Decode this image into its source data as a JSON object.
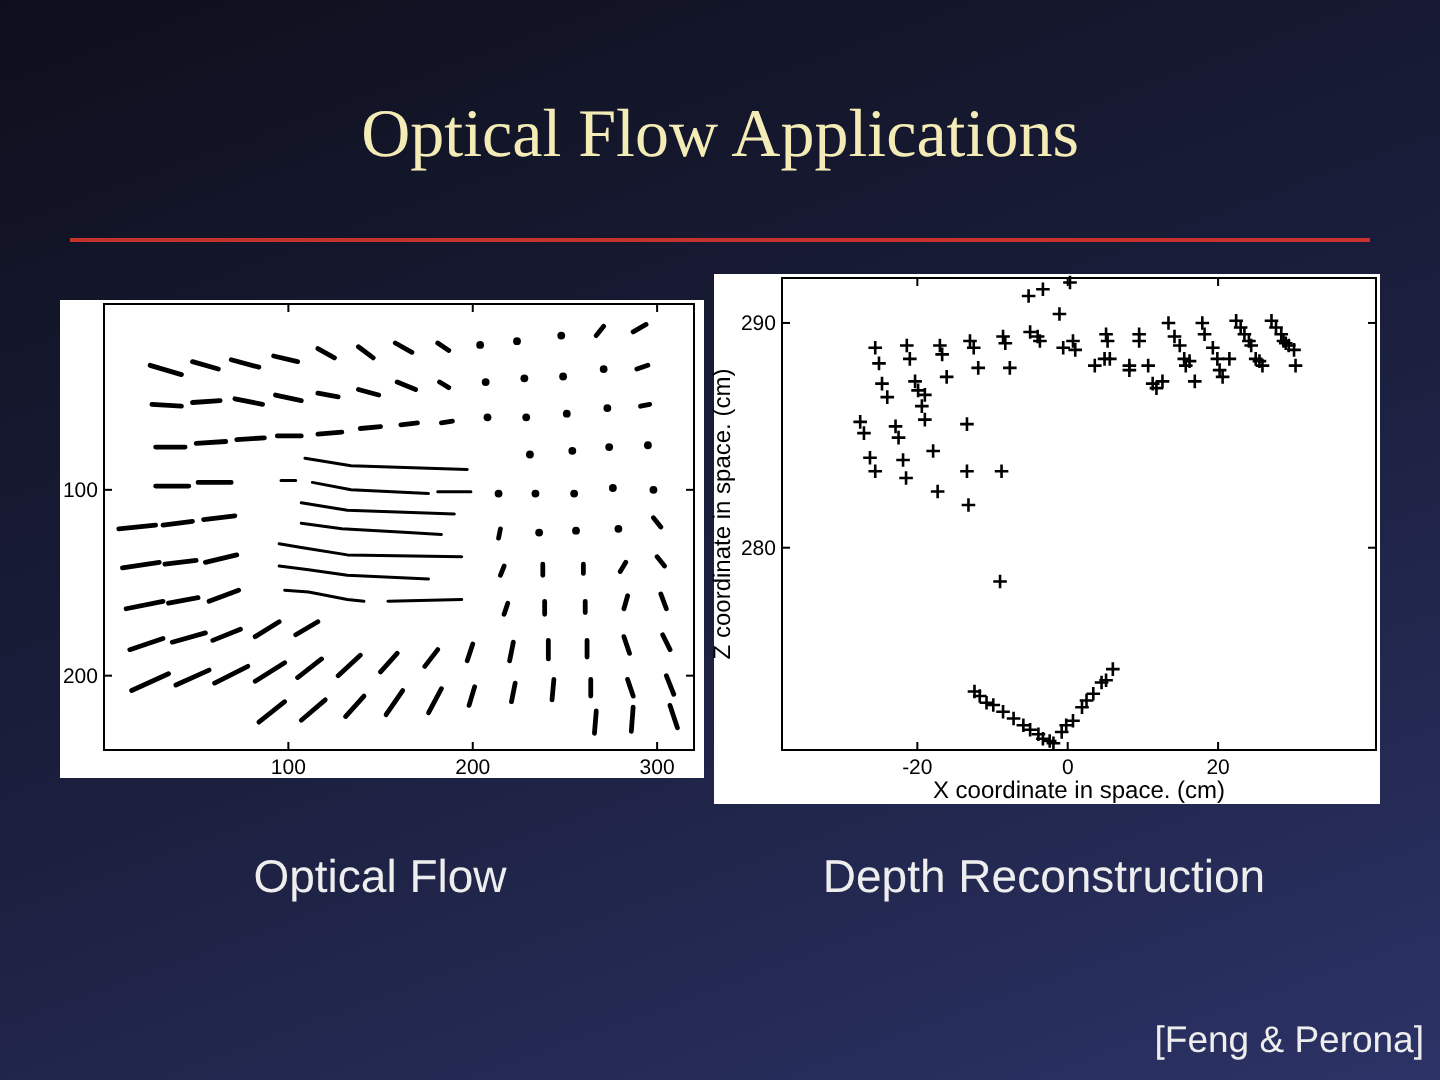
{
  "chart_data": [
    {
      "type": "line",
      "title": "Optical Flow Applications",
      "annotations": [
        "Optical Flow"
      ],
      "color": "#000000",
      "xlim": [
        0,
        320
      ],
      "ylim": [
        240,
        0
      ],
      "xticks": [
        100,
        200,
        300
      ],
      "yticks": [
        100,
        200
      ],
      "series": [
        {
          "x": [
            25,
            42,
            null,
            48,
            62,
            null,
            69,
            84,
            null,
            92,
            105,
            null,
            116,
            125,
            null,
            138,
            146,
            null,
            158,
            167,
            null,
            181,
            187,
            null,
            267,
            271,
            null,
            287,
            294
          ],
          "values": [
            33,
            38,
            null,
            31,
            35,
            null,
            30,
            34,
            null,
            28,
            31,
            null,
            24,
            29,
            null,
            23,
            29,
            null,
            21,
            26,
            null,
            21,
            25,
            null,
            17,
            12,
            null,
            15,
            11
          ]
        },
        {
          "x": [
            26,
            42,
            null,
            48,
            63,
            null,
            71,
            86,
            null,
            93,
            107,
            null,
            116,
            127,
            null,
            138,
            149,
            null,
            159,
            169,
            null,
            182,
            187,
            null,
            289,
            295
          ],
          "values": [
            54,
            55,
            null,
            53,
            52,
            null,
            51,
            54,
            null,
            49,
            52,
            null,
            48,
            50,
            null,
            46,
            49,
            null,
            42,
            46,
            null,
            42,
            45,
            null,
            35,
            33
          ]
        },
        {
          "x": [
            28,
            44,
            null,
            50,
            66,
            null,
            72,
            87,
            null,
            94,
            107,
            null,
            116,
            129,
            null,
            139,
            150,
            null,
            161,
            170,
            null,
            183,
            189,
            null,
            291,
            296
          ],
          "values": [
            77,
            77,
            null,
            75,
            74,
            null,
            73,
            72,
            null,
            71,
            71,
            null,
            70,
            69,
            null,
            67,
            66,
            null,
            65,
            64,
            null,
            64,
            63,
            null,
            55,
            54
          ]
        },
        {
          "x": [
            28,
            46,
            null,
            51,
            69
          ],
          "values": [
            98,
            98,
            null,
            96,
            96
          ]
        },
        {
          "x": [
            8,
            28,
            null,
            32,
            48,
            null,
            54,
            71
          ],
          "values": [
            121,
            119,
            null,
            119,
            117,
            null,
            116,
            114
          ]
        },
        {
          "x": [
            214,
            215,
            null,
            298,
            302
          ],
          "values": [
            126,
            121,
            null,
            115,
            120
          ]
        },
        {
          "x": [
            10,
            30,
            null,
            33,
            50,
            null,
            55,
            72
          ],
          "values": [
            142,
            139,
            null,
            140,
            138,
            null,
            139,
            135
          ]
        },
        {
          "x": [
            215,
            217,
            null,
            238,
            238,
            null,
            260,
            260,
            null,
            280,
            283,
            null,
            300,
            304
          ],
          "values": [
            146,
            141,
            null,
            146,
            140,
            null,
            145,
            140,
            null,
            144,
            139,
            null,
            136,
            141
          ]
        },
        {
          "x": [
            12,
            32,
            null,
            35,
            51,
            null,
            57,
            73
          ],
          "values": [
            164,
            160,
            null,
            161,
            158,
            null,
            160,
            154
          ]
        },
        {
          "x": [
            217,
            219,
            null,
            239,
            239,
            null,
            261,
            261,
            null,
            282,
            284,
            null,
            302,
            305
          ],
          "values": [
            167,
            161,
            null,
            167,
            160,
            null,
            166,
            160,
            null,
            164,
            157,
            null,
            156,
            164
          ]
        },
        {
          "x": [
            14,
            32,
            null,
            37,
            55,
            null,
            59,
            74,
            null,
            82,
            95,
            null,
            104,
            116
          ],
          "values": [
            186,
            180,
            null,
            182,
            177,
            null,
            181,
            175,
            null,
            179,
            171,
            null,
            178,
            171
          ]
        },
        {
          "x": [
            197,
            200,
            null,
            220,
            222,
            null,
            241,
            241,
            null,
            262,
            262,
            null,
            282,
            285,
            null,
            303,
            307
          ],
          "values": [
            192,
            183,
            null,
            192,
            182,
            null,
            191,
            181,
            null,
            190,
            181,
            null,
            179,
            188,
            null,
            178,
            186
          ]
        },
        {
          "x": [
            15,
            35,
            null,
            39,
            57,
            null,
            60,
            78,
            null,
            82,
            98,
            null,
            105,
            118,
            null,
            127,
            139,
            null,
            150,
            159,
            null,
            174,
            181
          ],
          "values": [
            208,
            199,
            null,
            205,
            197,
            null,
            204,
            195,
            null,
            203,
            193,
            null,
            201,
            191,
            null,
            200,
            189,
            null,
            198,
            188,
            null,
            195,
            186
          ]
        },
        {
          "x": [
            198,
            201,
            null,
            221,
            223,
            null,
            243,
            244,
            null,
            264,
            264,
            null,
            284,
            287,
            null,
            305,
            309
          ],
          "values": [
            216,
            206,
            null,
            214,
            204,
            null,
            213,
            202,
            null,
            211,
            202,
            null,
            202,
            211,
            null,
            200,
            210
          ]
        },
        {
          "x": [
            84,
            98,
            null,
            107,
            120,
            null,
            131,
            141,
            null,
            153,
            162,
            null,
            176,
            183
          ],
          "values": [
            225,
            214,
            null,
            224,
            213,
            null,
            222,
            211,
            null,
            221,
            208,
            null,
            220,
            207
          ]
        },
        {
          "x": [
            266,
            267,
            null,
            286,
            287,
            null,
            307,
            311
          ],
          "values": [
            231,
            219,
            null,
            230,
            217,
            null,
            216,
            228
          ]
        },
        {
          "type": "scatter",
          "marker": "circle",
          "x": [
            204,
            224,
            248,
            207,
            228,
            249,
            271,
            208,
            229,
            251,
            273,
            231,
            254,
            274,
            295,
            214,
            234,
            255,
            276,
            298,
            236,
            256,
            279
          ],
          "values": [
            22,
            20,
            17,
            42,
            40,
            39,
            35,
            61,
            61,
            59,
            56,
            81,
            79,
            77,
            76,
            102,
            102,
            102,
            99,
            100,
            123,
            122,
            121
          ]
        },
        {
          "x": [
            109,
            134,
            197
          ],
          "values": [
            83,
            87,
            89
          ]
        },
        {
          "x": [
            96,
            104,
            null,
            113,
            134,
            176,
            null,
            181,
            199
          ],
          "values": [
            95,
            95,
            null,
            96,
            100,
            102,
            null,
            101,
            101
          ]
        },
        {
          "x": [
            107,
            132,
            190
          ],
          "values": [
            107,
            111,
            113
          ]
        },
        {
          "x": [
            107,
            129,
            165,
            183
          ],
          "values": [
            118,
            121,
            123,
            124
          ]
        },
        {
          "x": [
            95,
            107,
            132,
            194
          ],
          "values": [
            129,
            131,
            135,
            136
          ]
        },
        {
          "x": [
            95,
            111,
            132,
            176
          ],
          "values": [
            141,
            143,
            146,
            148
          ]
        },
        {
          "x": [
            98,
            111,
            132,
            141,
            null,
            154,
            194
          ],
          "values": [
            154,
            155,
            159,
            160,
            null,
            160,
            159
          ]
        }
      ]
    },
    {
      "type": "scatter",
      "xlabel": "X coordinate in space. (cm)",
      "ylabel": "Z coordinate in space. (cm)",
      "annotations": [
        "Depth Reconstruction",
        "[Feng & Perona]"
      ],
      "color": "#000000",
      "marker": "cross",
      "xlim": [
        -38,
        41
      ],
      "ylim": [
        271,
        292
      ],
      "xticks": [
        -20,
        0,
        20
      ],
      "yticks": [
        280,
        290
      ],
      "series": [
        {
          "x": [
            -5.2,
            -3.3,
            0.3,
            -1.1,
            -5.0,
            -4.0,
            -3.7,
            -0.6,
            0.7,
            1.0,
            -25.6,
            -21.4,
            -21.0,
            -17.0,
            -16.7,
            -13.0,
            -12.5,
            -8.6,
            -8.3,
            -11.9,
            -16.1,
            -7.7,
            -25.1,
            -24.7,
            -24.0,
            -20.3,
            -19.9,
            -19.0,
            -19.4,
            -19.0,
            -27.6,
            -27.1,
            -26.3,
            -25.6,
            -22.9,
            -22.5,
            -21.9,
            -21.5,
            -17.9,
            -17.3,
            -13.4,
            -13.4,
            -13.2,
            -8.8,
            3.6,
            4.9,
            5.6,
            5.3,
            5.1,
            8.2,
            8.2,
            10.7,
            11.3,
            11.8,
            12.6,
            9.5,
            9.5,
            13.4,
            14.2,
            14.9,
            15.5,
            15.7,
            16.2,
            16.9,
            17.9,
            18.2,
            19.3,
            19.9,
            20.2,
            20.6,
            21.5,
            22.4,
            23.0,
            23.5,
            24.1,
            24.4,
            25.0,
            25.5,
            25.9,
            27.1,
            27.7,
            28.4,
            28.7,
            29.0,
            29.4,
            30.1,
            30.3,
            -9.0,
            -12.4,
            -11.7,
            -10.8,
            -9.9,
            -8.6,
            -7.2,
            -5.9,
            -5.0,
            -3.9,
            -3.3,
            -2.4,
            -1.9,
            -0.8,
            -0.2,
            0.7,
            1.9,
            2.5,
            3.4,
            4.5,
            5.1,
            6.0
          ],
          "values": [
            291.2,
            291.5,
            291.8,
            290.4,
            289.6,
            289.4,
            289.2,
            288.9,
            289.2,
            288.8,
            288.9,
            289.0,
            288.4,
            289.0,
            288.6,
            289.2,
            288.9,
            289.4,
            289.1,
            288.0,
            287.6,
            288.0,
            288.2,
            287.3,
            286.7,
            287.4,
            287.0,
            286.8,
            286.3,
            285.7,
            285.6,
            285.1,
            284.0,
            283.4,
            285.4,
            284.9,
            283.9,
            283.1,
            284.3,
            282.5,
            285.5,
            283.4,
            281.9,
            283.4,
            288.1,
            288.4,
            288.4,
            289.2,
            289.5,
            288.1,
            287.9,
            288.1,
            287.3,
            287.1,
            287.4,
            289.2,
            289.5,
            290.0,
            289.4,
            289.0,
            288.4,
            288.1,
            288.3,
            287.4,
            290.0,
            289.5,
            288.9,
            288.4,
            287.9,
            287.6,
            288.4,
            290.1,
            289.8,
            289.5,
            289.2,
            289.0,
            288.4,
            288.3,
            288.1,
            290.1,
            289.8,
            289.5,
            289.2,
            289.1,
            289.0,
            288.8,
            288.1,
            278.5,
            273.6,
            273.4,
            273.1,
            273.0,
            272.7,
            272.4,
            272.1,
            271.9,
            271.7,
            271.5,
            271.4,
            271.3,
            271.8,
            272.1,
            272.3,
            272.9,
            273.2,
            273.5,
            274.0,
            274.1,
            274.6
          ]
        }
      ]
    }
  ]
}
